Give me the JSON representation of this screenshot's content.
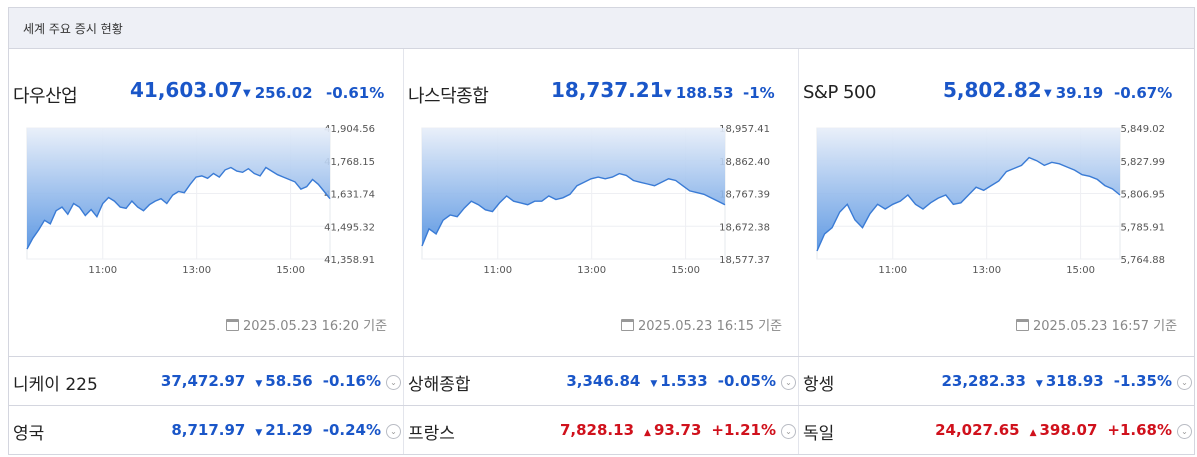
{
  "header": {
    "title": "세계 주요 증시 현황"
  },
  "indices": [
    {
      "name": "다우산업",
      "value": "41,603.07",
      "change": "256.02",
      "pct": "-0.61%",
      "direction": "down",
      "stamp": "2025.05.23 16:20 기준",
      "yticks": [
        "41,904.56",
        "41,768.15",
        "41,631.74",
        "41,495.32",
        "41,358.91"
      ],
      "xticks": [
        "11:00",
        "13:00",
        "15:00"
      ],
      "series": [
        41400,
        41445,
        41480,
        41520,
        41505,
        41560,
        41575,
        41545,
        41590,
        41575,
        41540,
        41565,
        41535,
        41590,
        41615,
        41600,
        41575,
        41570,
        41600,
        41575,
        41560,
        41585,
        41600,
        41610,
        41590,
        41625,
        41640,
        41635,
        41670,
        41700,
        41705,
        41695,
        41715,
        41700,
        41730,
        41740,
        41725,
        41720,
        41735,
        41715,
        41705,
        41740,
        41725,
        41710,
        41700,
        41690,
        41680,
        41650,
        41660,
        41690,
        41670,
        41640,
        41610
      ]
    },
    {
      "name": "나스닥종합",
      "value": "18,737.21",
      "change": "188.53",
      "pct": "-1%",
      "direction": "down",
      "stamp": "2025.05.23 16:15 기준",
      "yticks": [
        "18,957.41",
        "18,862.40",
        "18,767.39",
        "18,672.38",
        "18,577.37"
      ],
      "xticks": [
        "11:00",
        "13:00",
        "15:00"
      ],
      "series": [
        18615,
        18665,
        18650,
        18690,
        18705,
        18700,
        18725,
        18745,
        18735,
        18720,
        18715,
        18740,
        18760,
        18745,
        18740,
        18735,
        18745,
        18745,
        18760,
        18750,
        18755,
        18765,
        18790,
        18800,
        18810,
        18815,
        18810,
        18815,
        18825,
        18820,
        18805,
        18800,
        18795,
        18790,
        18800,
        18810,
        18805,
        18790,
        18775,
        18770,
        18765,
        18755,
        18745,
        18735
      ]
    },
    {
      "name": "S&P 500",
      "value": "5,802.82",
      "change": "39.19",
      "pct": "-0.67%",
      "direction": "down",
      "stamp": "2025.05.23 16:57 기준",
      "yticks": [
        "5,849.02",
        "5,827.99",
        "5,806.95",
        "5,785.91",
        "5,764.88"
      ],
      "xticks": [
        "11:00",
        "13:00",
        "15:00"
      ],
      "series": [
        5770,
        5781,
        5785,
        5795,
        5800,
        5790,
        5785,
        5794,
        5800,
        5797,
        5800,
        5802,
        5806,
        5800,
        5797,
        5801,
        5804,
        5806,
        5800,
        5801,
        5806,
        5811,
        5809,
        5812,
        5815,
        5821,
        5823,
        5825,
        5830,
        5828,
        5825,
        5827,
        5826,
        5824,
        5822,
        5819,
        5818,
        5816,
        5812,
        5810,
        5806
      ]
    }
  ],
  "markets": [
    {
      "name": "니케이 225",
      "value": "37,472.97",
      "change": "58.56",
      "pct": "-0.16%",
      "direction": "down"
    },
    {
      "name": "상해종합",
      "value": "3,346.84",
      "change": "1.533",
      "pct": "-0.05%",
      "direction": "down"
    },
    {
      "name": "항셍",
      "value": "23,282.33",
      "change": "318.93",
      "pct": "-1.35%",
      "direction": "down"
    },
    {
      "name": "영국",
      "value": "8,717.97",
      "change": "21.29",
      "pct": "-0.24%",
      "direction": "down"
    },
    {
      "name": "프랑스",
      "value": "7,828.13",
      "change": "93.73",
      "pct": "+1.21%",
      "direction": "up"
    },
    {
      "name": "독일",
      "value": "24,027.65",
      "change": "398.07",
      "pct": "+1.68%",
      "direction": "up"
    }
  ],
  "icons": {
    "down": "▼",
    "up": "▲",
    "expand": "⌄",
    "calendar": "calendar-icon"
  },
  "colors": {
    "down": "#1a56c8",
    "up": "#d0111c",
    "line": "#3a7bd5"
  }
}
